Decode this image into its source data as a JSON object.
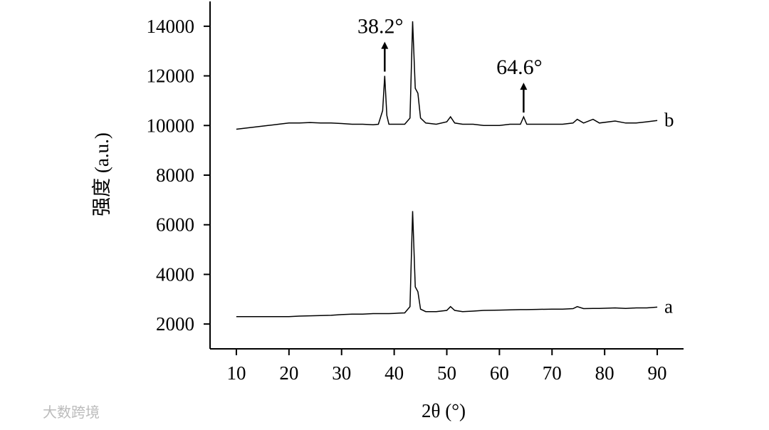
{
  "chart_data": {
    "type": "line",
    "xlabel": "2θ (°)",
    "ylabel": "强度 (a.u.)",
    "x": [
      10,
      12,
      14,
      16,
      18,
      20,
      22,
      24,
      26,
      28,
      30,
      32,
      34,
      36,
      37,
      37.8,
      38.2,
      38.6,
      39,
      40,
      41,
      42,
      43,
      43.5,
      44,
      44.5,
      45,
      46,
      48,
      50,
      50.7,
      51.5,
      53,
      55,
      57,
      60,
      62,
      64,
      64.6,
      65.2,
      67,
      70,
      72,
      74,
      74.8,
      76,
      77.8,
      79,
      82,
      84,
      86,
      88,
      90
    ],
    "series": [
      {
        "name": "a",
        "color": "#000000",
        "values": [
          2300,
          2300,
          2300,
          2300,
          2300,
          2300,
          2320,
          2330,
          2340,
          2350,
          2380,
          2400,
          2400,
          2420,
          2420,
          2420,
          2420,
          2420,
          2420,
          2430,
          2440,
          2450,
          2700,
          6550,
          3500,
          3300,
          2600,
          2500,
          2500,
          2550,
          2700,
          2550,
          2500,
          2520,
          2550,
          2560,
          2570,
          2580,
          2580,
          2580,
          2590,
          2600,
          2600,
          2620,
          2700,
          2620,
          2630,
          2630,
          2650,
          2630,
          2650,
          2650,
          2680
        ]
      },
      {
        "name": "b",
        "color": "#000000",
        "values": [
          9850,
          9900,
          9950,
          10000,
          10050,
          10100,
          10100,
          10120,
          10100,
          10100,
          10080,
          10050,
          10050,
          10030,
          10050,
          10600,
          12000,
          10400,
          10050,
          10050,
          10050,
          10050,
          10300,
          14200,
          11500,
          11300,
          10300,
          10100,
          10050,
          10150,
          10350,
          10100,
          10050,
          10050,
          10000,
          10000,
          10050,
          10050,
          10350,
          10050,
          10050,
          10050,
          10050,
          10100,
          10250,
          10100,
          10250,
          10100,
          10180,
          10100,
          10100,
          10150,
          10200
        ]
      }
    ],
    "annotations": [
      {
        "text": "38.2°",
        "x": 38.2
      },
      {
        "text": "64.6°",
        "x": 64.6
      }
    ],
    "xlim": [
      5,
      95
    ],
    "xticks": [
      10,
      20,
      30,
      40,
      50,
      60,
      70,
      80,
      90
    ],
    "ylim": [
      1000,
      15000
    ],
    "yticks": [
      2000,
      4000,
      6000,
      8000,
      10000,
      12000,
      14000
    ],
    "watermark": "大数跨境"
  }
}
